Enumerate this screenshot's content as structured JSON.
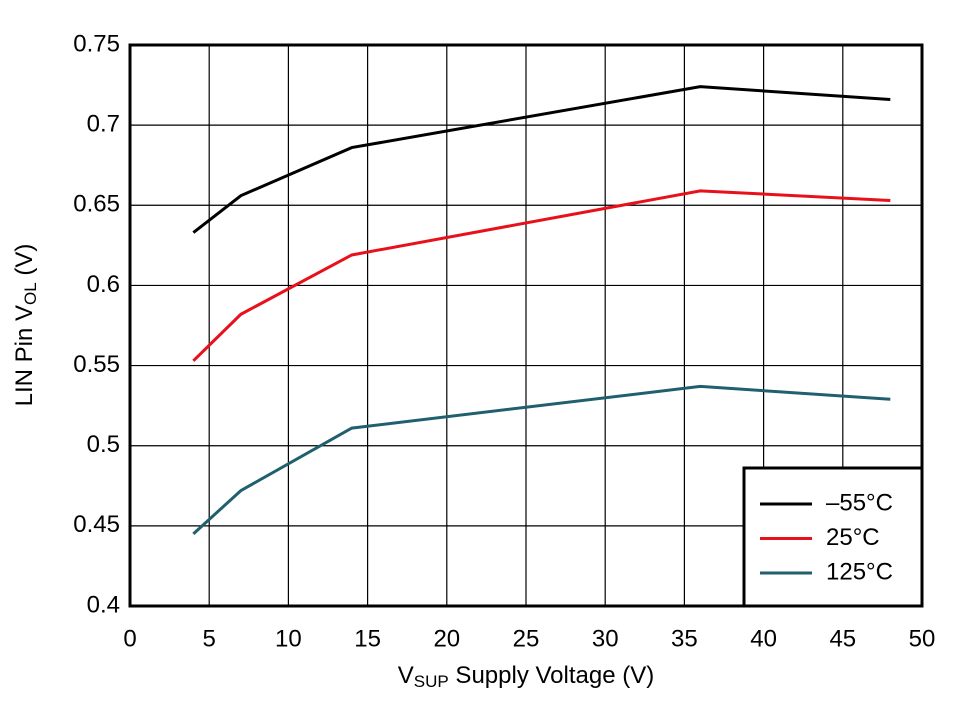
{
  "chart_data": {
    "type": "line",
    "xlabel": [
      "V",
      "SUP",
      " Supply Voltage (V)"
    ],
    "ylabel": [
      "LIN Pin V",
      "OL",
      " (V)"
    ],
    "x": [
      4,
      7,
      14,
      36,
      48
    ],
    "series": [
      {
        "name": "–55°C",
        "color": "#000000",
        "values": [
          0.633,
          0.656,
          0.686,
          0.724,
          0.716
        ]
      },
      {
        "name": "25°C",
        "color": "#e8101a",
        "values": [
          0.553,
          0.582,
          0.619,
          0.659,
          0.653
        ]
      },
      {
        "name": "125°C",
        "color": "#1f5f6e",
        "values": [
          0.445,
          0.472,
          0.511,
          0.537,
          0.529
        ]
      }
    ],
    "xlim": [
      0,
      50
    ],
    "xticks": [
      0,
      5,
      10,
      15,
      20,
      25,
      30,
      35,
      40,
      45,
      50
    ],
    "ylim": [
      0.4,
      0.75
    ],
    "yticks": [
      0.4,
      0.45,
      0.5,
      0.55,
      0.6,
      0.65,
      0.7,
      0.75
    ],
    "grid": true,
    "legend": "lower right"
  }
}
